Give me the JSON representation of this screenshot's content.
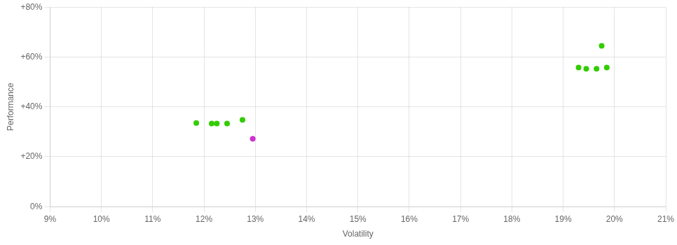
{
  "chart_data": {
    "type": "scatter",
    "x_label": "Volatility",
    "y_label": "Performance",
    "series": [
      {
        "color": "#33cc00",
        "x": [
          0.1185,
          0.1215,
          0.1225,
          0.1245,
          0.1275,
          0.193,
          0.1945,
          0.1965,
          0.1985,
          0.1975
        ],
        "values": [
          0.335,
          0.333,
          0.333,
          0.333,
          0.348,
          0.558,
          0.553,
          0.553,
          0.558,
          0.645
        ]
      },
      {
        "color": "#cc33cc",
        "x": [
          0.1295
        ],
        "values": [
          0.272
        ]
      }
    ],
    "xlim": [
      0.09,
      0.21
    ],
    "ylim": [
      0.0,
      0.8
    ],
    "xticks": [
      {
        "value": 0.09,
        "label": "9%"
      },
      {
        "value": 0.1,
        "label": "10%"
      },
      {
        "value": 0.11,
        "label": "11%"
      },
      {
        "value": 0.12,
        "label": "12%"
      },
      {
        "value": 0.13,
        "label": "13%"
      },
      {
        "value": 0.14,
        "label": "14%"
      },
      {
        "value": 0.15,
        "label": "15%"
      },
      {
        "value": 0.16,
        "label": "16%"
      },
      {
        "value": 0.17,
        "label": "17%"
      },
      {
        "value": 0.18,
        "label": "18%"
      },
      {
        "value": 0.19,
        "label": "19%"
      },
      {
        "value": 0.2,
        "label": "20%"
      },
      {
        "value": 0.21,
        "label": "21%"
      }
    ],
    "yticks": [
      {
        "value": 0.0,
        "label": "0%"
      },
      {
        "value": 0.2,
        "label": "+20%"
      },
      {
        "value": 0.4,
        "label": "+40%"
      },
      {
        "value": 0.6,
        "label": "+60%"
      },
      {
        "value": 0.8,
        "label": "+80%"
      }
    ],
    "grid": true
  }
}
